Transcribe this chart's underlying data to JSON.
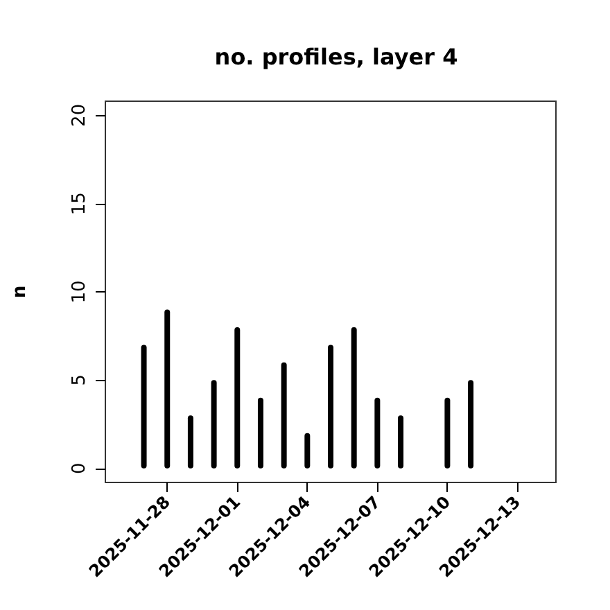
{
  "chart_data": {
    "type": "bar",
    "title": "no. profiles, layer 4",
    "ylabel": "n",
    "x": [
      "2025-11-27",
      "2025-11-28",
      "2025-11-29",
      "2025-11-30",
      "2025-12-01",
      "2025-12-02",
      "2025-12-03",
      "2025-12-04",
      "2025-12-05",
      "2025-12-06",
      "2025-12-07",
      "2025-12-08",
      "2025-12-09",
      "2025-12-10",
      "2025-12-11",
      "2025-12-12",
      "2025-12-13"
    ],
    "values": [
      7,
      9,
      3,
      5,
      8,
      4,
      6,
      2,
      7,
      8,
      4,
      3,
      0,
      4,
      5,
      0,
      0
    ],
    "color": "#000000",
    "xlim": [
      "2025-11-25T08:24",
      "2025-12-14T15:36"
    ],
    "xticks": [
      "2025-11-28",
      "2025-12-01",
      "2025-12-04",
      "2025-12-07",
      "2025-12-10",
      "2025-12-13"
    ],
    "ylim": [
      -0.8,
      20.8
    ],
    "yticks": [
      0,
      5,
      10,
      15,
      20
    ]
  }
}
